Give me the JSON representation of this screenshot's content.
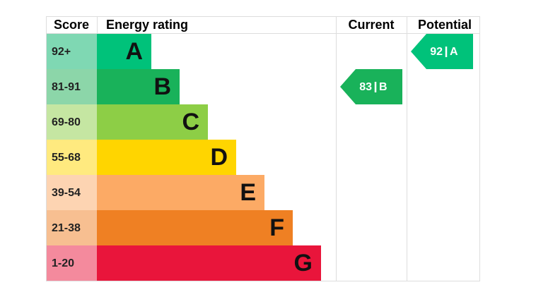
{
  "header": {
    "score": "Score",
    "rating": "Energy rating",
    "current": "Current",
    "potential": "Potential"
  },
  "bands": [
    {
      "score": "92+",
      "letter": "A",
      "color": "#00c27a",
      "score_color": "#7fd8b3"
    },
    {
      "score": "81-91",
      "letter": "B",
      "color": "#19b25a",
      "score_color": "#8cd6a9"
    },
    {
      "score": "69-80",
      "letter": "C",
      "color": "#8dce46",
      "score_color": "#c5e6a2"
    },
    {
      "score": "55-68",
      "letter": "D",
      "color": "#ffd500",
      "score_color": "#ffea7f"
    },
    {
      "score": "39-54",
      "letter": "E",
      "color": "#fcaa65",
      "score_color": "#fdd4b2"
    },
    {
      "score": "21-38",
      "letter": "F",
      "color": "#ef8023",
      "score_color": "#f7bf91"
    },
    {
      "score": "1-20",
      "letter": "G",
      "color": "#e9153b",
      "score_color": "#f48a9d"
    }
  ],
  "current": {
    "score": 83,
    "rating": "B"
  },
  "potential": {
    "score": 92,
    "rating": "A"
  }
}
